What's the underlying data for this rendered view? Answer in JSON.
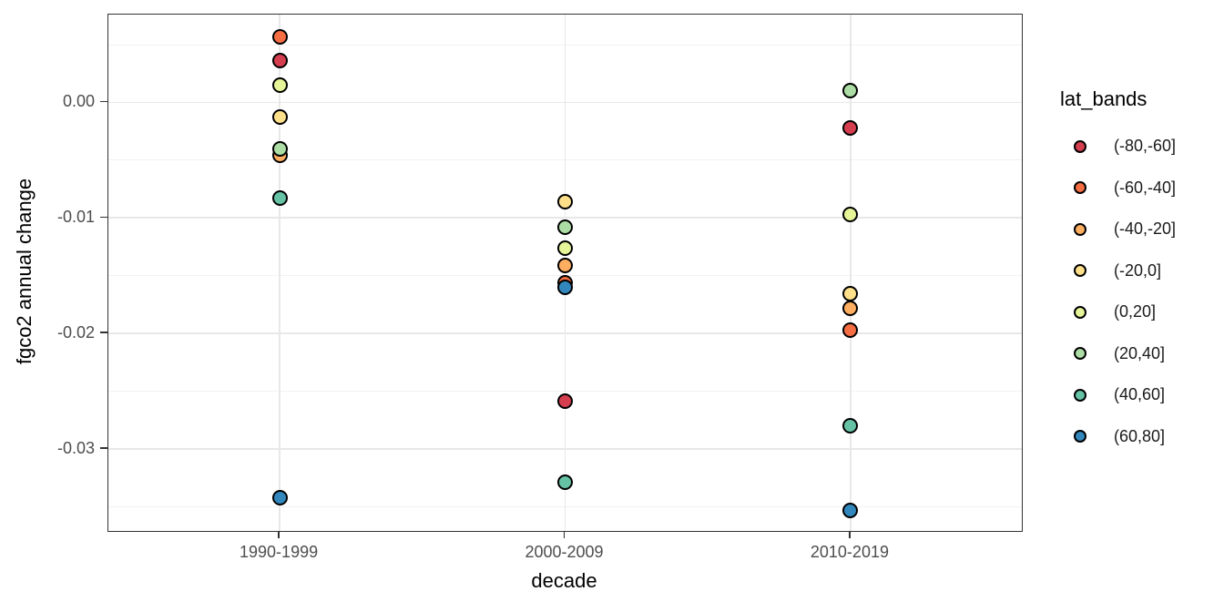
{
  "chart_data": {
    "type": "scatter",
    "title": "",
    "xlabel": "decade",
    "ylabel": "fgco2 annual change",
    "legend_title": "lat_bands",
    "legend_position": "right",
    "grid": "major+minor horizontal, major vertical",
    "categories": [
      "1990-1999",
      "2000-2009",
      "2010-2019"
    ],
    "yticks": [
      0,
      -0.01,
      -0.02,
      -0.03
    ],
    "ytick_labels": [
      "0.00",
      "-0.01",
      "-0.02",
      "-0.03"
    ],
    "ylim": [
      -0.0371,
      0.0076
    ],
    "point_outline": "#000000",
    "series": [
      {
        "name": "(-80,-60]",
        "color": "#d53e4f",
        "values": [
          0.0036,
          -0.0259,
          -0.0022
        ]
      },
      {
        "name": "(-60,-40]",
        "color": "#f46d43",
        "values": [
          0.0057,
          -0.0156,
          -0.0197
        ]
      },
      {
        "name": "(-40,-20]",
        "color": "#fdae61",
        "values": [
          -0.0046,
          -0.0141,
          -0.0178
        ]
      },
      {
        "name": "(-20,0]",
        "color": "#fee08b",
        "values": [
          -0.0013,
          -0.0086,
          -0.0166
        ]
      },
      {
        "name": "(0,20]",
        "color": "#e6f598",
        "values": [
          0.0015,
          -0.0126,
          -0.0097
        ]
      },
      {
        "name": "(20,40]",
        "color": "#abdda4",
        "values": [
          -0.004,
          -0.0108,
          0.001
        ]
      },
      {
        "name": "(40,60]",
        "color": "#66c2a5",
        "values": [
          -0.0083,
          -0.0329,
          -0.028
        ]
      },
      {
        "name": "(60,80]",
        "color": "#3288bd",
        "values": [
          -0.0342,
          -0.016,
          -0.0353
        ]
      }
    ]
  }
}
